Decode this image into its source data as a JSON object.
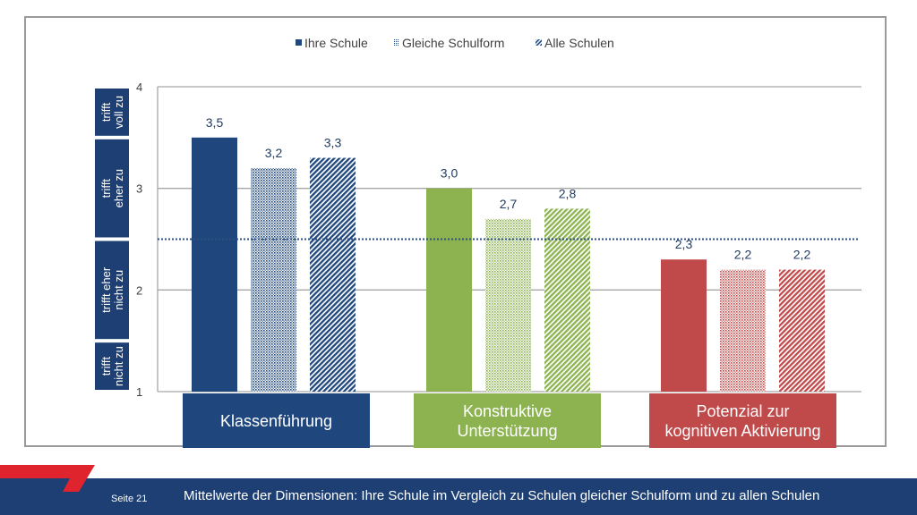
{
  "chart_data": {
    "type": "bar",
    "legend": {
      "position": "top",
      "entries": [
        "Ihre Schule",
        "Gleiche Schulform",
        "Alle Schulen"
      ]
    },
    "series": [
      {
        "name": "Ihre Schule",
        "values": [
          3.5,
          3.0,
          2.3
        ],
        "labels": [
          "3,5",
          "3,0",
          "2,3"
        ],
        "pattern": "solid"
      },
      {
        "name": "Gleiche Schulform",
        "values": [
          3.2,
          2.7,
          2.2
        ],
        "labels": [
          "3,2",
          "2,7",
          "2,2"
        ],
        "pattern": "dotted"
      },
      {
        "name": "Alle Schulen",
        "values": [
          3.3,
          2.8,
          2.2
        ],
        "labels": [
          "3,3",
          "2,8",
          "2,2"
        ],
        "pattern": "hatched"
      }
    ],
    "categories": [
      {
        "label": "Klassenführung",
        "lines": [
          "Klassenführung"
        ],
        "color": "#1f477d"
      },
      {
        "label": "Konstruktive Unterstützung",
        "lines": [
          "Konstruktive",
          "Unterstützung"
        ],
        "color": "#8cb350"
      },
      {
        "label": "Potenzial zur kognitiven Aktivierung",
        "lines": [
          "Potenzial zur",
          "kognitiven Aktivierung"
        ],
        "color": "#c0494a"
      }
    ],
    "ylim": [
      1,
      4
    ],
    "yticks": [
      1,
      2,
      3,
      4
    ],
    "ytick_labels": [
      "1",
      "2",
      "3",
      "4"
    ],
    "reference_line": 2.5,
    "scale_labels": [
      {
        "from": 1.0,
        "to": 1.5,
        "lines": [
          "trifft",
          "nicht zu"
        ]
      },
      {
        "from": 1.5,
        "to": 2.5,
        "lines": [
          "trifft eher",
          "nicht zu"
        ]
      },
      {
        "from": 2.5,
        "to": 3.5,
        "lines": [
          "trifft",
          "eher zu"
        ]
      },
      {
        "from": 3.5,
        "to": 4.0,
        "lines": [
          "trifft",
          "voll zu"
        ]
      }
    ],
    "grid": true
  },
  "footer": {
    "page_label": "Seite 21",
    "caption": "Mittelwerte der Dimensionen: Ihre Schule im Vergleich zu Schulen gleicher Schulform und zu allen Schulen"
  },
  "colors": {
    "footer_bg": "#1d3f73",
    "footer_accent": "#e0242e",
    "scale_box": "#1d3f73",
    "reference_line": "#2c4f7f"
  }
}
